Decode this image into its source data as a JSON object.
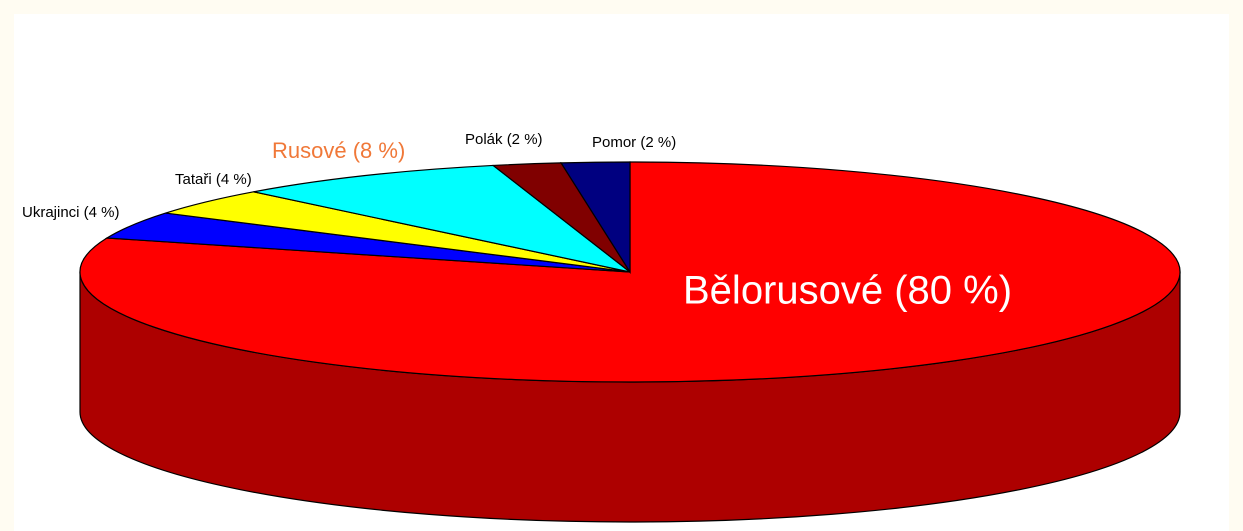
{
  "chart_data": {
    "type": "pie3d",
    "categories": [
      "Bělorusové (80 %)",
      "Ukrajinci (4 %)",
      "Tataři (4 %)",
      "Rusové (8 %)",
      "Polák (2 %)",
      "Pomor (2 %)"
    ],
    "values": [
      80,
      4,
      4,
      8,
      2,
      2
    ],
    "colors": [
      "#ff0000",
      "#0000ff",
      "#ffff00",
      "#00ffff",
      "#800000",
      "#000080"
    ],
    "label_colors": [
      "#ffffff",
      "#000000",
      "#000000",
      "#f07838",
      "#000000",
      "#000000"
    ]
  }
}
